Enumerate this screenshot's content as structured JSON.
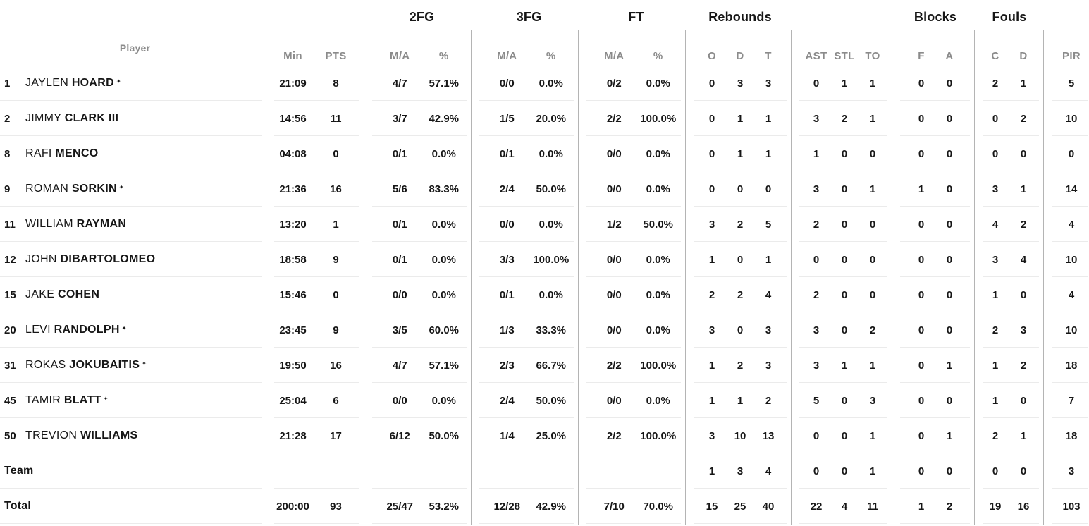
{
  "colors": {
    "text": "#161616",
    "muted": "#8b8b8b",
    "divider": "#b4b4b4",
    "row_line": "#ebebeb",
    "background": "#ffffff"
  },
  "starter_mark": "✦",
  "header": {
    "player_label": "Player",
    "min_label": "Min",
    "pts_label": "PTS",
    "fg2_title": "2FG",
    "fg3_title": "3FG",
    "ft_title": "FT",
    "ma_label": "M/A",
    "pct_label": "%",
    "rebounds_title": "Rebounds",
    "o_label": "O",
    "d_label": "D",
    "t_label": "T",
    "ast_label": "AST",
    "stl_label": "STL",
    "to_label": "TO",
    "blocks_title": "Blocks",
    "f_label": "F",
    "a_label": "A",
    "fouls_title": "Fouls",
    "c_label": "C",
    "fouls_d_label": "D",
    "pir_label": "PIR"
  },
  "rows": [
    {
      "type": "player",
      "number": "1",
      "first": "JAYLEN",
      "last": "HOARD",
      "starter": true,
      "min": "21:09",
      "pts": "8",
      "fg2": [
        "4/7",
        "57.1%"
      ],
      "fg3": [
        "0/0",
        "0.0%"
      ],
      "ft": [
        "0/2",
        "0.0%"
      ],
      "reb": [
        "0",
        "3",
        "3"
      ],
      "ast": [
        "0",
        "1",
        "1"
      ],
      "blk": [
        "0",
        "0"
      ],
      "fouls": [
        "2",
        "1"
      ],
      "pir": "5"
    },
    {
      "type": "player",
      "number": "2",
      "first": "JIMMY",
      "last": "CLARK III",
      "starter": false,
      "min": "14:56",
      "pts": "11",
      "fg2": [
        "3/7",
        "42.9%"
      ],
      "fg3": [
        "1/5",
        "20.0%"
      ],
      "ft": [
        "2/2",
        "100.0%"
      ],
      "reb": [
        "0",
        "1",
        "1"
      ],
      "ast": [
        "3",
        "2",
        "1"
      ],
      "blk": [
        "0",
        "0"
      ],
      "fouls": [
        "0",
        "2"
      ],
      "pir": "10"
    },
    {
      "type": "player",
      "number": "8",
      "first": "RAFI",
      "last": "MENCO",
      "starter": false,
      "min": "04:08",
      "pts": "0",
      "fg2": [
        "0/1",
        "0.0%"
      ],
      "fg3": [
        "0/1",
        "0.0%"
      ],
      "ft": [
        "0/0",
        "0.0%"
      ],
      "reb": [
        "0",
        "1",
        "1"
      ],
      "ast": [
        "1",
        "0",
        "0"
      ],
      "blk": [
        "0",
        "0"
      ],
      "fouls": [
        "0",
        "0"
      ],
      "pir": "0"
    },
    {
      "type": "player",
      "number": "9",
      "first": "ROMAN",
      "last": "SORKIN",
      "starter": true,
      "min": "21:36",
      "pts": "16",
      "fg2": [
        "5/6",
        "83.3%"
      ],
      "fg3": [
        "2/4",
        "50.0%"
      ],
      "ft": [
        "0/0",
        "0.0%"
      ],
      "reb": [
        "0",
        "0",
        "0"
      ],
      "ast": [
        "3",
        "0",
        "1"
      ],
      "blk": [
        "1",
        "0"
      ],
      "fouls": [
        "3",
        "1"
      ],
      "pir": "14"
    },
    {
      "type": "player",
      "number": "11",
      "first": "WILLIAM",
      "last": "RAYMAN",
      "starter": false,
      "min": "13:20",
      "pts": "1",
      "fg2": [
        "0/1",
        "0.0%"
      ],
      "fg3": [
        "0/0",
        "0.0%"
      ],
      "ft": [
        "1/2",
        "50.0%"
      ],
      "reb": [
        "3",
        "2",
        "5"
      ],
      "ast": [
        "2",
        "0",
        "0"
      ],
      "blk": [
        "0",
        "0"
      ],
      "fouls": [
        "4",
        "2"
      ],
      "pir": "4"
    },
    {
      "type": "player",
      "number": "12",
      "first": "JOHN",
      "last": "DIBARTOLOMEO",
      "starter": false,
      "min": "18:58",
      "pts": "9",
      "fg2": [
        "0/1",
        "0.0%"
      ],
      "fg3": [
        "3/3",
        "100.0%"
      ],
      "ft": [
        "0/0",
        "0.0%"
      ],
      "reb": [
        "1",
        "0",
        "1"
      ],
      "ast": [
        "0",
        "0",
        "0"
      ],
      "blk": [
        "0",
        "0"
      ],
      "fouls": [
        "3",
        "4"
      ],
      "pir": "10"
    },
    {
      "type": "player",
      "number": "15",
      "first": "JAKE",
      "last": "COHEN",
      "starter": false,
      "min": "15:46",
      "pts": "0",
      "fg2": [
        "0/0",
        "0.0%"
      ],
      "fg3": [
        "0/1",
        "0.0%"
      ],
      "ft": [
        "0/0",
        "0.0%"
      ],
      "reb": [
        "2",
        "2",
        "4"
      ],
      "ast": [
        "2",
        "0",
        "0"
      ],
      "blk": [
        "0",
        "0"
      ],
      "fouls": [
        "1",
        "0"
      ],
      "pir": "4"
    },
    {
      "type": "player",
      "number": "20",
      "first": "LEVI",
      "last": "RANDOLPH",
      "starter": true,
      "min": "23:45",
      "pts": "9",
      "fg2": [
        "3/5",
        "60.0%"
      ],
      "fg3": [
        "1/3",
        "33.3%"
      ],
      "ft": [
        "0/0",
        "0.0%"
      ],
      "reb": [
        "3",
        "0",
        "3"
      ],
      "ast": [
        "3",
        "0",
        "2"
      ],
      "blk": [
        "0",
        "0"
      ],
      "fouls": [
        "2",
        "3"
      ],
      "pir": "10"
    },
    {
      "type": "player",
      "number": "31",
      "first": "ROKAS",
      "last": "JOKUBAITIS",
      "starter": true,
      "min": "19:50",
      "pts": "16",
      "fg2": [
        "4/7",
        "57.1%"
      ],
      "fg3": [
        "2/3",
        "66.7%"
      ],
      "ft": [
        "2/2",
        "100.0%"
      ],
      "reb": [
        "1",
        "2",
        "3"
      ],
      "ast": [
        "3",
        "1",
        "1"
      ],
      "blk": [
        "0",
        "1"
      ],
      "fouls": [
        "1",
        "2"
      ],
      "pir": "18"
    },
    {
      "type": "player",
      "number": "45",
      "first": "TAMIR",
      "last": "BLATT",
      "starter": true,
      "min": "25:04",
      "pts": "6",
      "fg2": [
        "0/0",
        "0.0%"
      ],
      "fg3": [
        "2/4",
        "50.0%"
      ],
      "ft": [
        "0/0",
        "0.0%"
      ],
      "reb": [
        "1",
        "1",
        "2"
      ],
      "ast": [
        "5",
        "0",
        "3"
      ],
      "blk": [
        "0",
        "0"
      ],
      "fouls": [
        "1",
        "0"
      ],
      "pir": "7"
    },
    {
      "type": "player",
      "number": "50",
      "first": "TREVION",
      "last": "WILLIAMS",
      "starter": false,
      "min": "21:28",
      "pts": "17",
      "fg2": [
        "6/12",
        "50.0%"
      ],
      "fg3": [
        "1/4",
        "25.0%"
      ],
      "ft": [
        "2/2",
        "100.0%"
      ],
      "reb": [
        "3",
        "10",
        "13"
      ],
      "ast": [
        "0",
        "0",
        "1"
      ],
      "blk": [
        "0",
        "1"
      ],
      "fouls": [
        "2",
        "1"
      ],
      "pir": "18"
    },
    {
      "type": "summary",
      "label": "Team",
      "min": "",
      "pts": "",
      "fg2": [
        "",
        ""
      ],
      "fg3": [
        "",
        ""
      ],
      "ft": [
        "",
        ""
      ],
      "reb": [
        "1",
        "3",
        "4"
      ],
      "ast": [
        "0",
        "0",
        "1"
      ],
      "blk": [
        "0",
        "0"
      ],
      "fouls": [
        "0",
        "0"
      ],
      "pir": "3"
    },
    {
      "type": "summary",
      "label": "Total",
      "min": "200:00",
      "pts": "93",
      "fg2": [
        "25/47",
        "53.2%"
      ],
      "fg3": [
        "12/28",
        "42.9%"
      ],
      "ft": [
        "7/10",
        "70.0%"
      ],
      "reb": [
        "15",
        "25",
        "40"
      ],
      "ast": [
        "22",
        "4",
        "11"
      ],
      "blk": [
        "1",
        "2"
      ],
      "fouls": [
        "19",
        "16"
      ],
      "pir": "103"
    }
  ]
}
